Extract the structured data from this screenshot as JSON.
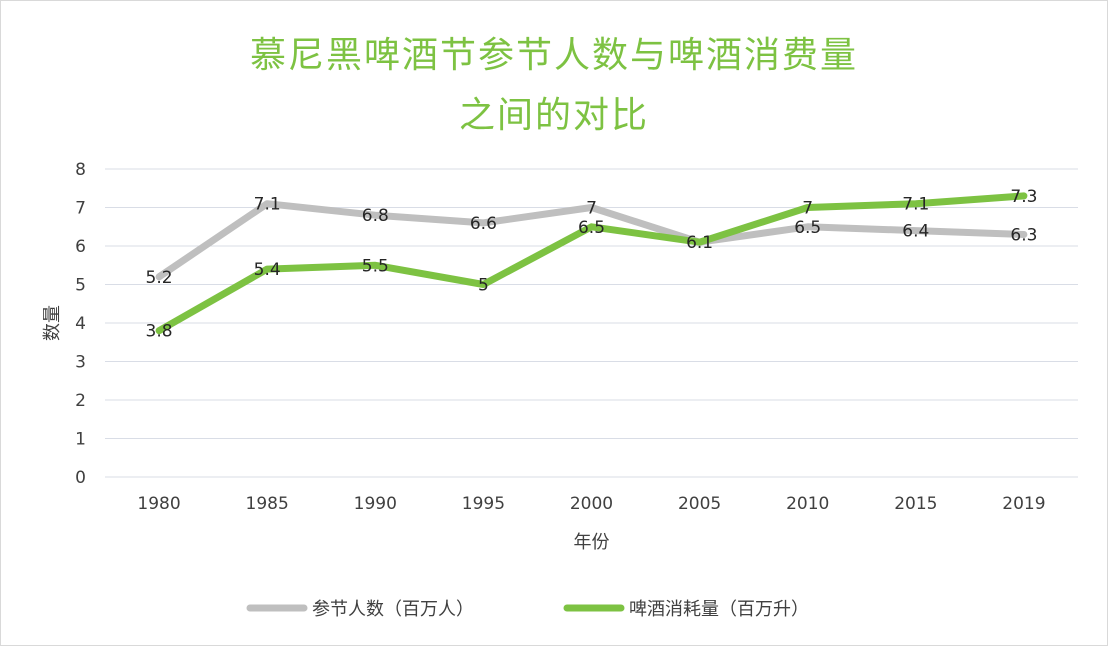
{
  "title_line1": "慕尼黑啤酒节参节人数与啤酒消费量",
  "title_line2": "之间的对比",
  "colors": {
    "title": "#7dc242",
    "grid": "#d9dde6",
    "text": "#404040"
  },
  "chart_data": {
    "type": "line",
    "xlabel": "年份",
    "ylabel": "数量",
    "ylim": [
      0,
      8
    ],
    "yticks": [
      "0",
      "1",
      "2",
      "3",
      "4",
      "5",
      "6",
      "7",
      "8"
    ],
    "grid": true,
    "legend_position": "bottom",
    "categories": [
      "1980",
      "1985",
      "1990",
      "1995",
      "2000",
      "2005",
      "2010",
      "2015",
      "2019"
    ],
    "series": [
      {
        "name": "参节人数（百万人）",
        "color": "#bfbfbf",
        "values": [
          5.2,
          7.1,
          6.8,
          6.6,
          7,
          6.1,
          6.5,
          6.4,
          6.3
        ],
        "labels": [
          "5.2",
          "7.1",
          "6.8",
          "6.6",
          "7",
          "",
          "6.5",
          "6.4",
          "6.3"
        ]
      },
      {
        "name": "啤酒消耗量（百万升）",
        "color": "#7dc242",
        "values": [
          3.8,
          5.4,
          5.5,
          5,
          6.5,
          6.1,
          7,
          7.1,
          7.3
        ],
        "labels": [
          "3.8",
          "5.4",
          "5.5",
          "5",
          "6.5",
          "6.1",
          "7",
          "7.1",
          "7.3"
        ]
      }
    ]
  }
}
